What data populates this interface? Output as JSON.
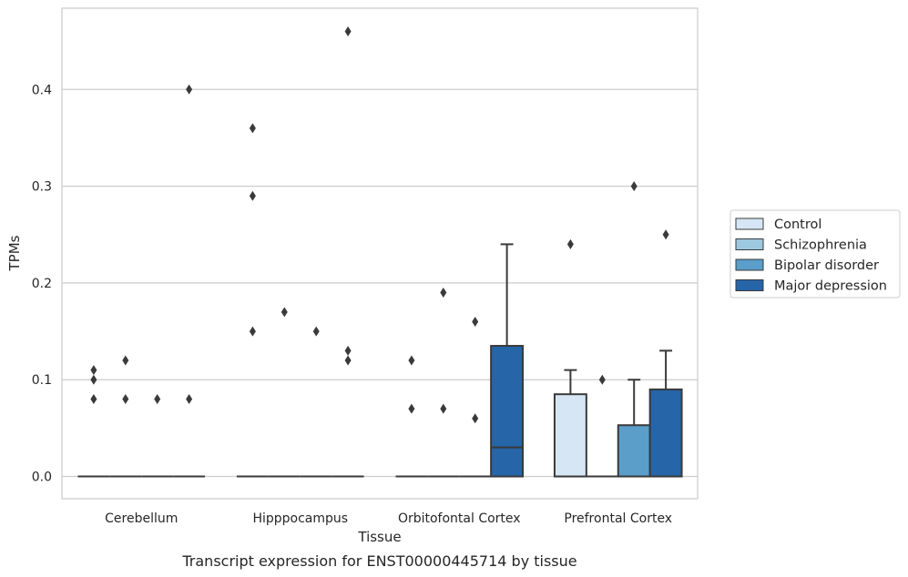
{
  "chart_data": {
    "type": "box",
    "title": "Transcript expression for ENST00000445714 by tissue",
    "xlabel": "Tissue",
    "ylabel": "TPMs",
    "ylim": [
      -0.023,
      0.484
    ],
    "yticks": [
      0.0,
      0.1,
      0.2,
      0.3,
      0.4
    ],
    "ytick_labels": [
      "0.0",
      "0.1",
      "0.2",
      "0.3",
      "0.4"
    ],
    "grid": "horizontal",
    "legend_position": "right",
    "categories": [
      "Cerebellum",
      "Hipppocampus",
      "Orbitofontal Cortex",
      "Prefrontal Cortex"
    ],
    "series": [
      {
        "name": "Control",
        "color": "#d6e6f4",
        "boxes": [
          {
            "q1": 0,
            "median": 0,
            "q3": 0,
            "whisker_low": 0,
            "whisker_high": 0,
            "outliers": [
              0.08,
              0.1,
              0.11
            ]
          },
          {
            "q1": 0,
            "median": 0,
            "q3": 0,
            "whisker_low": 0,
            "whisker_high": 0,
            "outliers": [
              0.15,
              0.29,
              0.36
            ]
          },
          {
            "q1": 0,
            "median": 0,
            "q3": 0,
            "whisker_low": 0,
            "whisker_high": 0,
            "outliers": [
              0.07,
              0.12
            ]
          },
          {
            "q1": 0,
            "median": 0,
            "q3": 0.085,
            "whisker_low": 0,
            "whisker_high": 0.11,
            "outliers": [
              0.24
            ]
          }
        ]
      },
      {
        "name": "Schizophrenia",
        "color": "#9dc9e0",
        "boxes": [
          {
            "q1": 0,
            "median": 0,
            "q3": 0,
            "whisker_low": 0,
            "whisker_high": 0,
            "outliers": [
              0.08,
              0.12
            ]
          },
          {
            "q1": 0,
            "median": 0,
            "q3": 0,
            "whisker_low": 0,
            "whisker_high": 0,
            "outliers": [
              0.17
            ]
          },
          {
            "q1": 0,
            "median": 0,
            "q3": 0,
            "whisker_low": 0,
            "whisker_high": 0,
            "outliers": [
              0.07,
              0.19
            ]
          },
          {
            "q1": 0,
            "median": 0,
            "q3": 0,
            "whisker_low": 0,
            "whisker_high": 0,
            "outliers": [
              0.1
            ]
          }
        ]
      },
      {
        "name": "Bipolar disorder",
        "color": "#5a9ec9",
        "boxes": [
          {
            "q1": 0,
            "median": 0,
            "q3": 0,
            "whisker_low": 0,
            "whisker_high": 0,
            "outliers": [
              0.08
            ]
          },
          {
            "q1": 0,
            "median": 0,
            "q3": 0,
            "whisker_low": 0,
            "whisker_high": 0,
            "outliers": [
              0.15
            ]
          },
          {
            "q1": 0,
            "median": 0,
            "q3": 0,
            "whisker_low": 0,
            "whisker_high": 0,
            "outliers": [
              0.06,
              0.16
            ]
          },
          {
            "q1": 0,
            "median": 0,
            "q3": 0.053,
            "whisker_low": 0,
            "whisker_high": 0.1,
            "outliers": [
              0.3
            ]
          }
        ]
      },
      {
        "name": "Major depression",
        "color": "#2565a8",
        "boxes": [
          {
            "q1": 0,
            "median": 0,
            "q3": 0,
            "whisker_low": 0,
            "whisker_high": 0,
            "outliers": [
              0.08,
              0.4
            ]
          },
          {
            "q1": 0,
            "median": 0,
            "q3": 0,
            "whisker_low": 0,
            "whisker_high": 0,
            "outliers": [
              0.12,
              0.13,
              0.46
            ]
          },
          {
            "q1": 0,
            "median": 0.03,
            "q3": 0.135,
            "whisker_low": 0,
            "whisker_high": 0.24,
            "outliers": []
          },
          {
            "q1": 0,
            "median": 0,
            "q3": 0.09,
            "whisker_low": 0,
            "whisker_high": 0.13,
            "outliers": [
              0.25
            ]
          }
        ]
      }
    ]
  }
}
